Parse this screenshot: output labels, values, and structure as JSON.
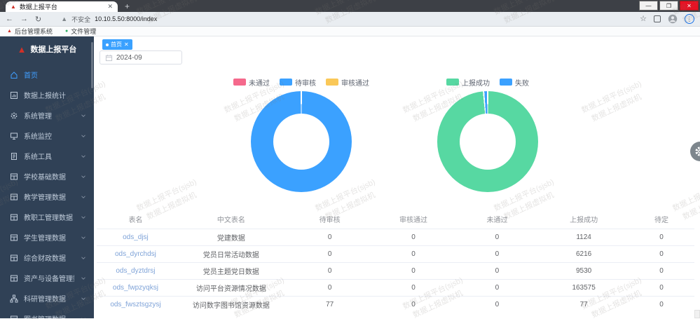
{
  "browser": {
    "tab_title": "数据上报平台",
    "security_label": "不安全",
    "url": "10.10.5.50:8000/index",
    "bookmarks": [
      {
        "label": "后台管理系统",
        "icon": "red-triangle-favicon"
      },
      {
        "label": "文件管理",
        "icon": "green-circle-favicon"
      }
    ]
  },
  "sidebar": {
    "logo_title": "数据上报平台",
    "items": [
      {
        "label": "首页",
        "icon": "home-icon",
        "active": true,
        "expandable": false
      },
      {
        "label": "数据上报统计",
        "icon": "chart-icon",
        "active": false,
        "expandable": false
      },
      {
        "label": "系统管理",
        "icon": "gear-icon",
        "active": false,
        "expandable": true
      },
      {
        "label": "系统监控",
        "icon": "monitor-icon",
        "active": false,
        "expandable": true
      },
      {
        "label": "系统工具",
        "icon": "doc-icon",
        "active": false,
        "expandable": true
      },
      {
        "label": "学校基础数据",
        "icon": "table-icon",
        "active": false,
        "expandable": true
      },
      {
        "label": "教学管理数据",
        "icon": "table-icon",
        "active": false,
        "expandable": true
      },
      {
        "label": "教职工管理数据",
        "icon": "table-icon",
        "active": false,
        "expandable": true
      },
      {
        "label": "学生管理数据",
        "icon": "table-icon",
        "active": false,
        "expandable": true
      },
      {
        "label": "综合财政数据",
        "icon": "table-icon",
        "active": false,
        "expandable": true
      },
      {
        "label": "资产与设备管理数据",
        "icon": "table-icon",
        "active": false,
        "expandable": true
      },
      {
        "label": "科研管理数据",
        "icon": "tree-icon",
        "active": false,
        "expandable": true
      },
      {
        "label": "图书管理数据",
        "icon": "table-icon",
        "active": false,
        "expandable": true
      }
    ]
  },
  "main": {
    "active_tag": "首页",
    "date_value": "2024-09"
  },
  "chart_data": [
    {
      "type": "pie",
      "subtype": "donut",
      "legend_position": "top",
      "series": [
        {
          "name": "未通过",
          "value": 0,
          "color": "#f5698c"
        },
        {
          "name": "待审核",
          "value": 77,
          "color": "#3ba1ff"
        },
        {
          "name": "审核通过",
          "value": 0,
          "color": "#fac858"
        }
      ]
    },
    {
      "type": "pie",
      "subtype": "donut",
      "legend_position": "top",
      "values_unit": "percent-estimated",
      "series": [
        {
          "name": "上报成功",
          "value": 98.7,
          "color": "#57d8a2"
        },
        {
          "name": "失败",
          "value": 1.3,
          "color": "#3ba1ff"
        }
      ]
    }
  ],
  "table": {
    "headers": [
      "表名",
      "中文表名",
      "待审核",
      "审核通过",
      "未通过",
      "上报成功",
      "待定"
    ],
    "rows": [
      [
        "ods_djsj",
        "党建数据",
        "0",
        "0",
        "0",
        "1124",
        "0"
      ],
      [
        "ods_dyrchdsj",
        "党员日常活动数据",
        "0",
        "0",
        "0",
        "6216",
        "0"
      ],
      [
        "ods_dyztdrsj",
        "党员主题党日数据",
        "0",
        "0",
        "0",
        "9530",
        "0"
      ],
      [
        "ods_fwpzyqksj",
        "访问平台资源情况数据",
        "0",
        "0",
        "0",
        "163575",
        "0"
      ],
      [
        "ods_fwsztsgzysj",
        "访问数字图书馆资源数据",
        "77",
        "0",
        "0",
        "77",
        "0"
      ]
    ]
  },
  "watermark": {
    "line1": "数据上报平台(sjsb)",
    "line2": "数据上报虚拟机"
  },
  "colors": {
    "accent_blue": "#3ba1ff",
    "success_green": "#57d8a2",
    "warn_yellow": "#fac858",
    "danger_pink": "#f5698c",
    "sidebar_bg": "#304156",
    "logo_red": "#d03027"
  }
}
